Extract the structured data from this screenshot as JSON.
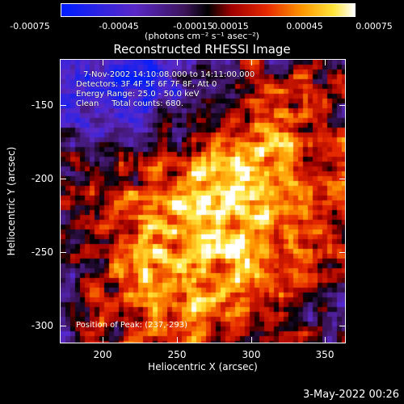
{
  "chart_data": {
    "type": "heatmap",
    "title": "Reconstructed RHESSI Image",
    "xlabel": "Heliocentric X (arcsec)",
    "ylabel": "Heliocentric Y (arcsec)",
    "xlim": [
      170,
      365
    ],
    "ylim": [
      -313,
      -120
    ],
    "xticks": [
      "200",
      "250",
      "300",
      "350"
    ],
    "yticks": [
      "-150",
      "-200",
      "-250",
      "-300"
    ],
    "colorbar": {
      "ticks": [
        "-0.00075",
        "-0.00045",
        "-0.00015",
        "0.00015",
        "0.00045",
        "0.00075"
      ],
      "label": "(photons cm⁻² s⁻¹ asec⁻²)",
      "range": [
        -0.00075,
        0.00075
      ]
    },
    "info_lines": [
      "7-Nov-2002 14:10:08.000 to 14:11:00.000",
      "Detectors: 3F 4F 5F 6F 7F 8F, Att 0",
      "Energy Range: 25.0 - 50.0 keV",
      "Clean     Total counts: 680."
    ],
    "peak_label": "Position of Peak: (237,-293)"
  },
  "timestamp": "3-May-2022 00:26"
}
